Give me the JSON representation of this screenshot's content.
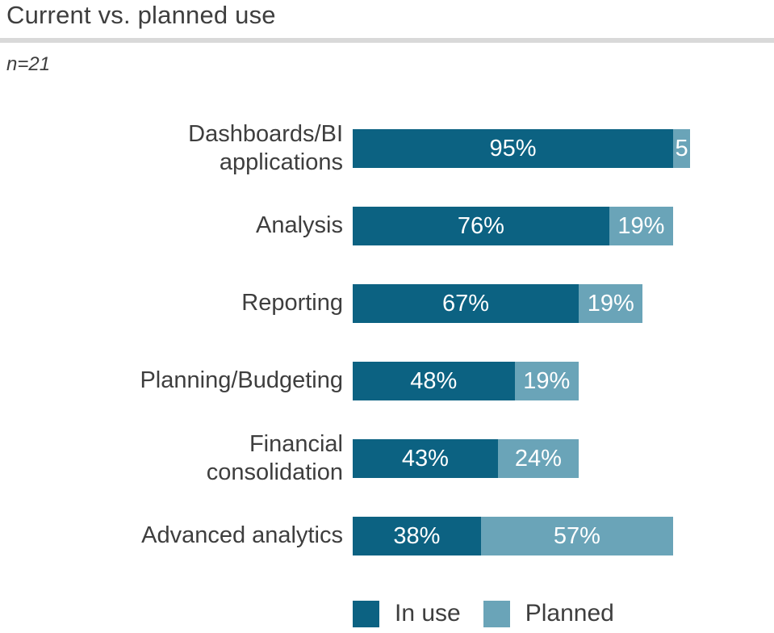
{
  "header": {
    "title": "Current vs. planned use",
    "sample_size": "n=21"
  },
  "colors": {
    "in_use": "#0c6282",
    "planned": "#6aa4b8",
    "text": "#3e3e3e",
    "divider": "#d9d9d9",
    "value_label": "#ffffff"
  },
  "chart_data": {
    "type": "bar",
    "orientation": "horizontal",
    "stacked": true,
    "title": "Current vs. planned use",
    "subtitle": "n=21",
    "x_max": 100,
    "grid": false,
    "value_labels_inside": true,
    "categories": [
      "Dashboards/BI\napplications",
      "Analysis",
      "Reporting",
      "Planning/Budgeting",
      "Financial\nconsolidation",
      "Advanced analytics"
    ],
    "series": [
      {
        "name": "In use",
        "color": "#0c6282",
        "values": [
          95,
          76,
          67,
          48,
          43,
          38
        ],
        "labels": [
          "95%",
          "76%",
          "67%",
          "48%",
          "43%",
          "38%"
        ]
      },
      {
        "name": "Planned",
        "color": "#6aa4b8",
        "values": [
          5,
          19,
          19,
          19,
          24,
          57
        ],
        "labels": [
          "5",
          "19%",
          "19%",
          "19%",
          "24%",
          "57%"
        ]
      }
    ],
    "legend": {
      "position": "bottom",
      "entries": [
        "In use",
        "Planned"
      ]
    }
  }
}
